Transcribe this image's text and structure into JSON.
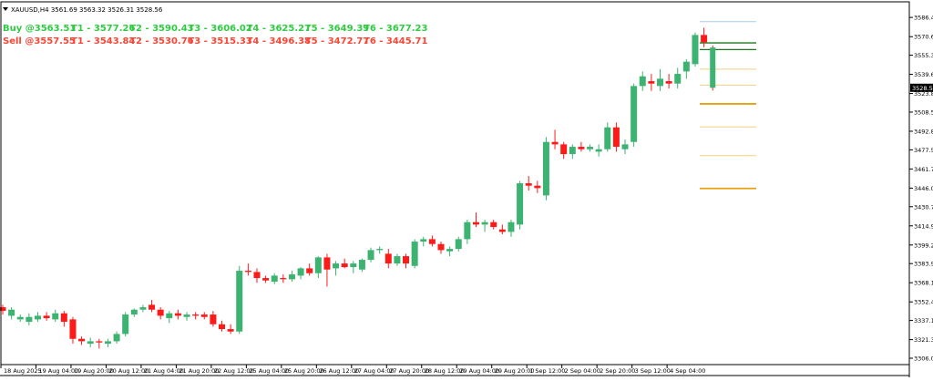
{
  "symbol_line": "XAUUSD,H4  3561.69 3563.32 3526.31 3528.56",
  "signals": {
    "buy": {
      "entry": "Buy @3563.51",
      "targets": [
        "T1 - 3577.26",
        "T2 - 3590.43",
        "T3 - 3606.02",
        "T4 - 3625.27",
        "T5 - 3649.39",
        "T6 - 3677.23"
      ]
    },
    "sell": {
      "entry": "Sell @3557.55",
      "targets": [
        "T1 - 3543.84",
        "T2 - 3530.76",
        "T3 - 3515.33",
        "T4 - 3496.38",
        "T5 - 3472.77",
        "T6 - 3445.71"
      ]
    }
  },
  "colors": {
    "bull": "#3cb371",
    "bear": "#ff1a1a",
    "buy_text": "#2ecc40",
    "sell_text": "#ff4433",
    "level_dark_green": "#1f7a1f",
    "level_orange": "#e8a010",
    "level_light_orange": "#f2cf80",
    "level_light_blue": "#a8cce8"
  },
  "chart_data": {
    "type": "candlestick",
    "symbol": "XAUUSD",
    "timeframe": "H4",
    "ylim": [
      3306.05,
      3589.53
    ],
    "y_ticks": [
      "3586.45",
      "3570.60",
      "3555.35",
      "3539.60",
      "3523.85",
      "3508.55",
      "3492.80",
      "3477.50",
      "3461.75",
      "3446.00",
      "3430.70",
      "3414.95",
      "3399.20",
      "3383.90",
      "3368.15",
      "3352.40",
      "3337.10",
      "3321.35",
      "3306.05"
    ],
    "current_price": "3528.56",
    "x_ticks": [
      {
        "label": "18 Aug 2025",
        "index": 0
      },
      {
        "label": "19 Aug 04:00",
        "index": 4
      },
      {
        "label": "19 Aug 20:00",
        "index": 8
      },
      {
        "label": "20 Aug 12:00",
        "index": 12
      },
      {
        "label": "21 Aug 04:00",
        "index": 16
      },
      {
        "label": "21 Aug 20:00",
        "index": 20
      },
      {
        "label": "22 Aug 12:00",
        "index": 24
      },
      {
        "label": "25 Aug 04:00",
        "index": 28
      },
      {
        "label": "25 Aug 20:00",
        "index": 32
      },
      {
        "label": "26 Aug 12:00",
        "index": 36
      },
      {
        "label": "27 Aug 04:00",
        "index": 40
      },
      {
        "label": "27 Aug 20:00",
        "index": 44
      },
      {
        "label": "28 Aug 12:00",
        "index": 48
      },
      {
        "label": "29 Aug 04:00",
        "index": 52
      },
      {
        "label": "29 Aug 20:00",
        "index": 56
      },
      {
        "label": "1 Sep 12:00",
        "index": 60
      },
      {
        "label": "2 Sep 04:00",
        "index": 64
      },
      {
        "label": "2 Sep 20:00",
        "index": 68
      },
      {
        "label": "3 Sep 12:00",
        "index": 72
      },
      {
        "label": "4 Sep 04:00",
        "index": 76
      }
    ],
    "candles": [
      {
        "o": 3348,
        "h": 3350,
        "l": 3342,
        "c": 3345
      },
      {
        "o": 3341,
        "h": 3348,
        "l": 3338,
        "c": 3346
      },
      {
        "o": 3338,
        "h": 3342,
        "l": 3336,
        "c": 3340
      },
      {
        "o": 3336,
        "h": 3343,
        "l": 3333,
        "c": 3340
      },
      {
        "o": 3338,
        "h": 3344,
        "l": 3336,
        "c": 3341
      },
      {
        "o": 3341,
        "h": 3344,
        "l": 3337,
        "c": 3339
      },
      {
        "o": 3338,
        "h": 3346,
        "l": 3336,
        "c": 3343
      },
      {
        "o": 3343,
        "h": 3345,
        "l": 3332,
        "c": 3336
      },
      {
        "o": 3338,
        "h": 3340,
        "l": 3318,
        "c": 3322
      },
      {
        "o": 3322,
        "h": 3324,
        "l": 3317,
        "c": 3320
      },
      {
        "o": 3318,
        "h": 3323,
        "l": 3315,
        "c": 3320
      },
      {
        "o": 3320,
        "h": 3322,
        "l": 3314,
        "c": 3319
      },
      {
        "o": 3318,
        "h": 3322,
        "l": 3315,
        "c": 3320
      },
      {
        "o": 3320,
        "h": 3328,
        "l": 3318,
        "c": 3326
      },
      {
        "o": 3326,
        "h": 3344,
        "l": 3324,
        "c": 3342
      },
      {
        "o": 3342,
        "h": 3347,
        "l": 3340,
        "c": 3346
      },
      {
        "o": 3346,
        "h": 3350,
        "l": 3344,
        "c": 3348
      },
      {
        "o": 3350,
        "h": 3354,
        "l": 3344,
        "c": 3346
      },
      {
        "o": 3346,
        "h": 3348,
        "l": 3338,
        "c": 3341
      },
      {
        "o": 3339,
        "h": 3345,
        "l": 3335,
        "c": 3343
      },
      {
        "o": 3343,
        "h": 3346,
        "l": 3338,
        "c": 3341
      },
      {
        "o": 3340,
        "h": 3344,
        "l": 3337,
        "c": 3342
      },
      {
        "o": 3342,
        "h": 3344,
        "l": 3338,
        "c": 3341
      },
      {
        "o": 3342,
        "h": 3344,
        "l": 3338,
        "c": 3340
      },
      {
        "o": 3342,
        "h": 3345,
        "l": 3332,
        "c": 3334
      },
      {
        "o": 3334,
        "h": 3337,
        "l": 3328,
        "c": 3330
      },
      {
        "o": 3330,
        "h": 3334,
        "l": 3326,
        "c": 3328
      },
      {
        "o": 3328,
        "h": 3382,
        "l": 3326,
        "c": 3378
      },
      {
        "o": 3378,
        "h": 3384,
        "l": 3374,
        "c": 3377
      },
      {
        "o": 3377,
        "h": 3380,
        "l": 3368,
        "c": 3372
      },
      {
        "o": 3372,
        "h": 3374,
        "l": 3368,
        "c": 3370
      },
      {
        "o": 3369,
        "h": 3376,
        "l": 3367,
        "c": 3374
      },
      {
        "o": 3372,
        "h": 3375,
        "l": 3368,
        "c": 3371
      },
      {
        "o": 3371,
        "h": 3378,
        "l": 3369,
        "c": 3375
      },
      {
        "o": 3374,
        "h": 3381,
        "l": 3371,
        "c": 3380
      },
      {
        "o": 3380,
        "h": 3384,
        "l": 3374,
        "c": 3376
      },
      {
        "o": 3376,
        "h": 3390,
        "l": 3372,
        "c": 3389
      },
      {
        "o": 3389,
        "h": 3392,
        "l": 3365,
        "c": 3379
      },
      {
        "o": 3380,
        "h": 3386,
        "l": 3374,
        "c": 3384
      },
      {
        "o": 3384,
        "h": 3388,
        "l": 3380,
        "c": 3381
      },
      {
        "o": 3381,
        "h": 3386,
        "l": 3376,
        "c": 3384
      },
      {
        "o": 3379,
        "h": 3388,
        "l": 3377,
        "c": 3387
      },
      {
        "o": 3387,
        "h": 3397,
        "l": 3385,
        "c": 3395
      },
      {
        "o": 3395,
        "h": 3398,
        "l": 3392,
        "c": 3396
      },
      {
        "o": 3392,
        "h": 3396,
        "l": 3380,
        "c": 3384
      },
      {
        "o": 3384,
        "h": 3392,
        "l": 3382,
        "c": 3390
      },
      {
        "o": 3390,
        "h": 3392,
        "l": 3380,
        "c": 3384
      },
      {
        "o": 3382,
        "h": 3404,
        "l": 3380,
        "c": 3402
      },
      {
        "o": 3402,
        "h": 3406,
        "l": 3398,
        "c": 3404
      },
      {
        "o": 3404,
        "h": 3407,
        "l": 3398,
        "c": 3400
      },
      {
        "o": 3400,
        "h": 3402,
        "l": 3392,
        "c": 3395
      },
      {
        "o": 3394,
        "h": 3398,
        "l": 3390,
        "c": 3396
      },
      {
        "o": 3396,
        "h": 3406,
        "l": 3394,
        "c": 3404
      },
      {
        "o": 3404,
        "h": 3420,
        "l": 3400,
        "c": 3418
      },
      {
        "o": 3418,
        "h": 3426,
        "l": 3414,
        "c": 3416
      },
      {
        "o": 3416,
        "h": 3420,
        "l": 3410,
        "c": 3418
      },
      {
        "o": 3418,
        "h": 3420,
        "l": 3412,
        "c": 3414
      },
      {
        "o": 3412,
        "h": 3416,
        "l": 3408,
        "c": 3410
      },
      {
        "o": 3410,
        "h": 3420,
        "l": 3406,
        "c": 3418
      },
      {
        "o": 3416,
        "h": 3452,
        "l": 3412,
        "c": 3450
      },
      {
        "o": 3450,
        "h": 3456,
        "l": 3444,
        "c": 3448
      },
      {
        "o": 3448,
        "h": 3452,
        "l": 3442,
        "c": 3446
      },
      {
        "o": 3440,
        "h": 3488,
        "l": 3436,
        "c": 3484
      },
      {
        "o": 3484,
        "h": 3494,
        "l": 3478,
        "c": 3482
      },
      {
        "o": 3482,
        "h": 3484,
        "l": 3470,
        "c": 3474
      },
      {
        "o": 3474,
        "h": 3482,
        "l": 3470,
        "c": 3480
      },
      {
        "o": 3480,
        "h": 3484,
        "l": 3476,
        "c": 3478
      },
      {
        "o": 3478,
        "h": 3482,
        "l": 3476,
        "c": 3480
      },
      {
        "o": 3476,
        "h": 3482,
        "l": 3472,
        "c": 3478
      },
      {
        "o": 3478,
        "h": 3500,
        "l": 3476,
        "c": 3496
      },
      {
        "o": 3496,
        "h": 3500,
        "l": 3476,
        "c": 3480
      },
      {
        "o": 3478,
        "h": 3486,
        "l": 3474,
        "c": 3482
      },
      {
        "o": 3484,
        "h": 3532,
        "l": 3480,
        "c": 3530
      },
      {
        "o": 3530,
        "h": 3542,
        "l": 3526,
        "c": 3538
      },
      {
        "o": 3534,
        "h": 3540,
        "l": 3526,
        "c": 3532
      },
      {
        "o": 3530,
        "h": 3544,
        "l": 3526,
        "c": 3536
      },
      {
        "o": 3534,
        "h": 3540,
        "l": 3528,
        "c": 3532
      },
      {
        "o": 3532,
        "h": 3545,
        "l": 3528,
        "c": 3540
      },
      {
        "o": 3542,
        "h": 3552,
        "l": 3536,
        "c": 3550
      },
      {
        "o": 3548,
        "h": 3574,
        "l": 3546,
        "c": 3572
      },
      {
        "o": 3572,
        "h": 3578,
        "l": 3562,
        "c": 3566
      },
      {
        "o": 3561.69,
        "h": 3563.32,
        "l": 3526.31,
        "c": 3528.56
      }
    ],
    "levels": [
      {
        "price": 3583.0,
        "style": "light_blue"
      },
      {
        "price": 3565.5,
        "style": "dark_green"
      },
      {
        "price": 3560.0,
        "style": "dark_green"
      },
      {
        "price": 3543.84,
        "style": "light_orange"
      },
      {
        "price": 3530.76,
        "style": "light_orange"
      },
      {
        "price": 3515.33,
        "style": "orange"
      },
      {
        "price": 3496.38,
        "style": "light_orange"
      },
      {
        "price": 3472.77,
        "style": "light_orange"
      },
      {
        "price": 3445.71,
        "style": "orange"
      }
    ]
  }
}
